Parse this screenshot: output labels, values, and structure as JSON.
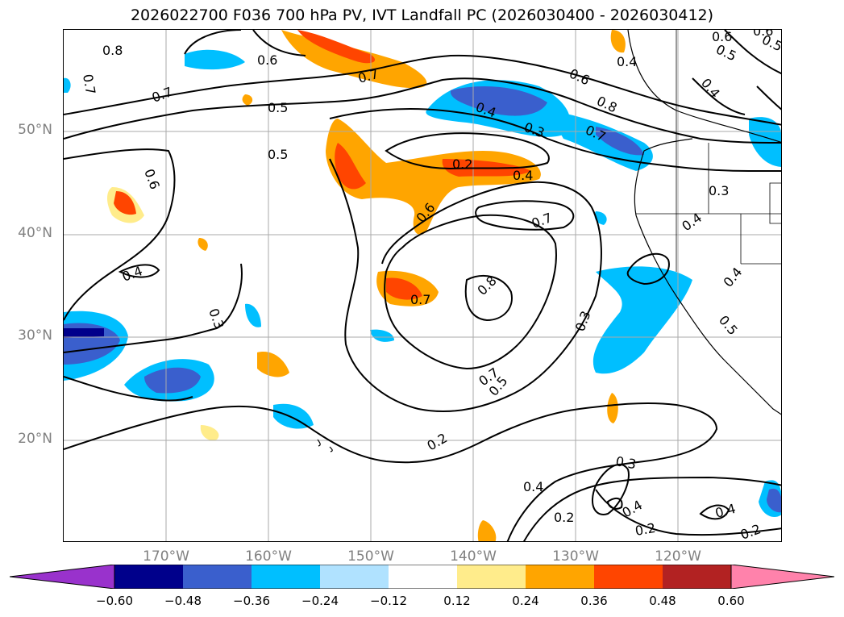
{
  "title": "2026022700 F036 700 hPa PV, IVT Landfall PC (2026030400 - 2026030412)",
  "lat_labels": [
    "50°N",
    "40°N",
    "30°N",
    "20°N"
  ],
  "lon_labels": [
    "170°W",
    "160°W",
    "150°W",
    "140°W",
    "130°W",
    "120°W"
  ],
  "colorbar": {
    "ticks": [
      "−0.60",
      "−0.48",
      "−0.36",
      "−0.24",
      "−0.12",
      "0.12",
      "0.24",
      "0.36",
      "0.48",
      "0.60"
    ],
    "colors": [
      "#9932cc",
      "#00008b",
      "#3a5fcd",
      "#00bfff",
      "#b0e2ff",
      "#ffffff",
      "#ffec8b",
      "#ffa500",
      "#ff4500",
      "#b22222",
      "#ff82ab"
    ]
  },
  "contour_labels": [
    "0.8",
    "0.7",
    "0.6",
    "0.7",
    "0.5",
    "0.5",
    "0.6",
    "0.4",
    "0.3",
    "0.2",
    "0.4",
    "0.6",
    "0.7",
    "0.8",
    "0.7",
    "0.3",
    "0.7",
    "0.5",
    "0.4",
    "0.3",
    "0.2",
    "0.4",
    "0.2",
    "0.3",
    "0.4",
    "0.2",
    "0.2",
    "0.4",
    "0.4",
    "0.4",
    "0.5",
    "0.6",
    "0.5",
    "0.4",
    "0.8",
    "0.7",
    "0.6",
    "0.5",
    "0.4",
    "0.3",
    "0.7",
    "0.6"
  ]
}
